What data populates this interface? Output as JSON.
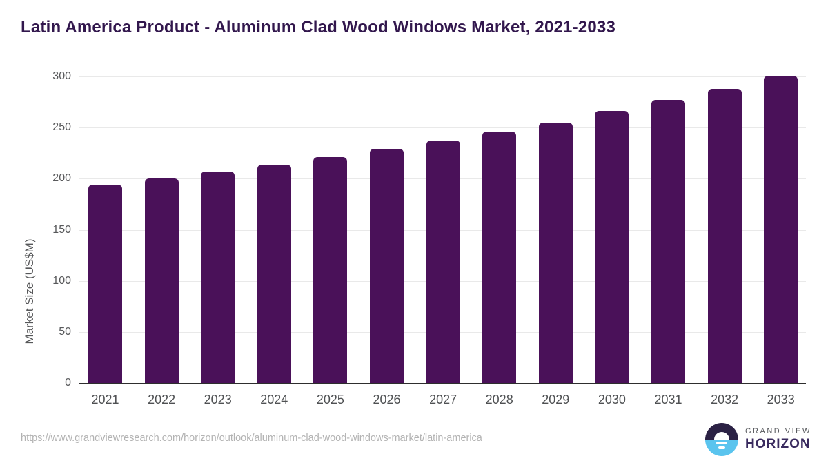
{
  "title": "Latin America Product - Aluminum Clad Wood Windows Market, 2021-2033",
  "colors": {
    "bar": "#4a1159",
    "title_text": "#32174d",
    "axis_tick_text": "#58595b",
    "gridline": "#e9e9e9",
    "axis_baseline": "#2e2e2e",
    "source_url_text": "#b3b3b3",
    "logo_circle_top": "#2b2144",
    "logo_circle_bottom": "#5ac4ee",
    "logo_grand_view_text": "#54565a",
    "logo_horizon_text": "#392a5e"
  },
  "chart_data": {
    "type": "bar",
    "title": "Latin America Product - Aluminum Clad Wood Windows Market, 2021-2033",
    "categories": [
      "2021",
      "2022",
      "2023",
      "2024",
      "2025",
      "2026",
      "2027",
      "2028",
      "2029",
      "2030",
      "2031",
      "2032",
      "2033"
    ],
    "values": [
      194,
      200,
      207,
      214,
      221,
      229,
      237,
      246,
      255,
      266,
      277,
      288,
      301
    ],
    "xlabel": "",
    "ylabel": "Market Size (US$M)",
    "ylim": [
      0,
      300
    ],
    "yticks": [
      0,
      50,
      100,
      150,
      200,
      250,
      300
    ],
    "grid": true,
    "legend_position": "none",
    "bar_color": "#4a1159"
  },
  "footer": {
    "source_url": "https://www.grandviewresearch.com/horizon/outlook/aluminum-clad-wood-windows-market/latin-america",
    "logo": {
      "line1": "GRAND VIEW",
      "line2": "HORIZON"
    }
  }
}
